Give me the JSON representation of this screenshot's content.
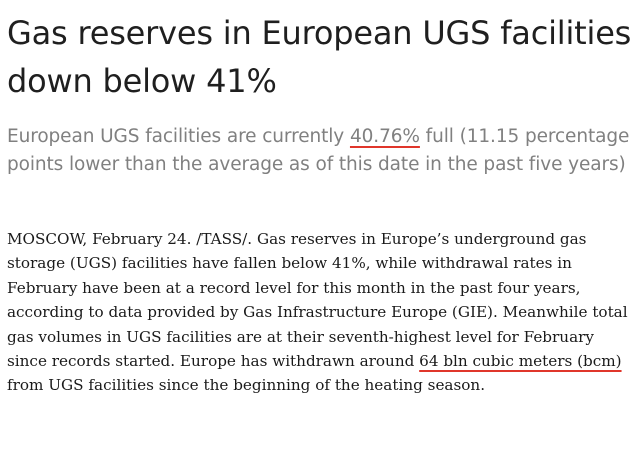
{
  "headline": "Gas reserves in European UGS facilities down below 41%",
  "lead": {
    "before": "European UGS facilities are currently ",
    "highlight": "40.76%",
    "after": " full (11.15 percentage points lower than the average as of this date in the past five years)"
  },
  "article": {
    "before": "MOSCOW, February 24. /TASS/. Gas reserves in Europe’s underground gas storage (UGS) facilities have fallen below 41%, while withdrawal rates in February have been at a record level for this month in the past four years, according to data provided by Gas Infrastructure Europe (GIE). Meanwhile total gas volumes in UGS facilities are at their seventh-highest level for February since records started. Europe has withdrawn around ",
    "highlight": "64 bln cubic meters (bcm)",
    "after": " from UGS facilities since the beginning of the heating season."
  },
  "colors": {
    "underline": "#e0362b",
    "lead_text": "#808080",
    "headline_text": "#1f1f1f"
  }
}
